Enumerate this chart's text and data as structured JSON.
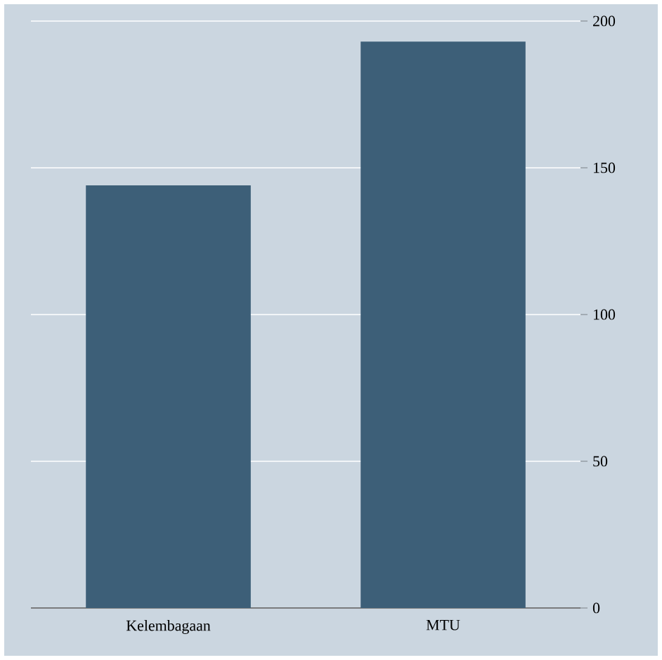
{
  "chart_data": {
    "type": "bar",
    "categories": [
      "Kelembagaan",
      "MTU"
    ],
    "values": [
      144,
      193
    ],
    "color": "#3d5f78",
    "ylim": [
      0,
      200
    ],
    "yticks": [
      0,
      50,
      100,
      150,
      200
    ],
    "grid": "y"
  }
}
